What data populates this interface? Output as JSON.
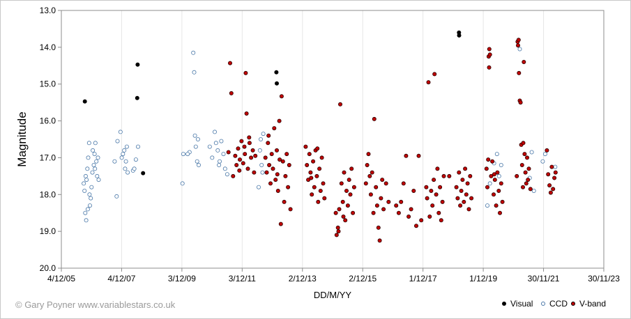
{
  "credit": "© Gary Poyner www.variablestars.co.uk",
  "chart_data": {
    "type": "scatter",
    "xlabel": "DD/M/YY",
    "ylabel": "Magnitude",
    "x_range": [
      "2005-12-04",
      "2023-11-30"
    ],
    "x_ticks": [
      "4/12/05",
      "4/12/07",
      "3/12/09",
      "3/12/11",
      "2/12/13",
      "2/12/15",
      "1/12/17",
      "1/12/19",
      "30/11/21",
      "30/11/23"
    ],
    "ylim": [
      13.0,
      20.0
    ],
    "y_inverted": true,
    "y_ticks": [
      "13.0",
      "14.0",
      "15.0",
      "16.0",
      "17.0",
      "18.0",
      "19.0",
      "20.0"
    ],
    "grid": "vertical",
    "legend_position": "bottom-right",
    "series": [
      {
        "name": "Visual",
        "color": "#000000",
        "points": [
          [
            "2006-09-15",
            15.47
          ],
          [
            "2008-06-15",
            14.47
          ],
          [
            "2008-06-10",
            15.38
          ],
          [
            "2008-08-20",
            17.42
          ],
          [
            "2013-01-20",
            14.68
          ],
          [
            "2013-01-25",
            14.98
          ],
          [
            "2019-02-10",
            13.6
          ],
          [
            "2019-02-12",
            13.68
          ]
        ]
      },
      {
        "name": "CCD",
        "color": "#4a78a8",
        "points": [
          [
            "2006-09-01",
            17.7
          ],
          [
            "2006-09-10",
            17.9
          ],
          [
            "2006-09-20",
            18.5
          ],
          [
            "2006-10-01",
            18.7
          ],
          [
            "2006-10-05",
            17.6
          ],
          [
            "2006-10-15",
            17.3
          ],
          [
            "2006-10-25",
            17.0
          ],
          [
            "2006-11-05",
            16.6
          ],
          [
            "2006-11-15",
            18.3
          ],
          [
            "2006-11-25",
            18.1
          ],
          [
            "2006-12-05",
            17.8
          ],
          [
            "2006-12-15",
            17.4
          ],
          [
            "2007-01-01",
            17.2
          ],
          [
            "2007-01-10",
            16.9
          ],
          [
            "2007-01-20",
            16.6
          ],
          [
            "2007-02-01",
            17.1
          ],
          [
            "2007-02-10",
            17.5
          ],
          [
            "2007-02-20",
            17.0
          ],
          [
            "2007-03-01",
            17.6
          ],
          [
            "2006-09-25",
            17.5
          ],
          [
            "2006-10-20",
            18.4
          ],
          [
            "2006-11-10",
            18.0
          ],
          [
            "2006-12-20",
            16.8
          ],
          [
            "2007-01-15",
            17.3
          ],
          [
            "2007-09-10",
            17.1
          ],
          [
            "2007-10-05",
            18.05
          ],
          [
            "2007-10-15",
            16.55
          ],
          [
            "2007-11-20",
            16.3
          ],
          [
            "2007-12-05",
            17.0
          ],
          [
            "2007-12-20",
            16.9
          ],
          [
            "2008-01-05",
            16.8
          ],
          [
            "2008-01-15",
            17.3
          ],
          [
            "2008-01-25",
            17.1
          ],
          [
            "2008-02-05",
            16.7
          ],
          [
            "2008-02-15",
            17.4
          ],
          [
            "2008-04-20",
            17.35
          ],
          [
            "2008-05-05",
            17.3
          ],
          [
            "2008-05-25",
            17.05
          ],
          [
            "2008-06-20",
            16.7
          ],
          [
            "2009-12-10",
            17.7
          ],
          [
            "2009-12-20",
            16.9
          ],
          [
            "2010-03-05",
            16.85
          ],
          [
            "2010-04-20",
            14.15
          ],
          [
            "2010-05-01",
            14.68
          ],
          [
            "2010-05-10",
            16.4
          ],
          [
            "2010-05-20",
            16.7
          ],
          [
            "2010-06-05",
            17.1
          ],
          [
            "2010-06-15",
            16.5
          ],
          [
            "2010-06-25",
            17.2
          ],
          [
            "2010-02-10",
            16.9
          ],
          [
            "2010-11-05",
            16.7
          ],
          [
            "2010-12-05",
            17.0
          ],
          [
            "2011-01-05",
            16.3
          ],
          [
            "2011-01-20",
            16.6
          ],
          [
            "2011-02-10",
            16.8
          ],
          [
            "2011-03-05",
            17.1
          ],
          [
            "2011-03-25",
            16.55
          ],
          [
            "2011-04-20",
            16.9
          ],
          [
            "2011-05-10",
            17.3
          ],
          [
            "2011-06-05",
            17.45
          ],
          [
            "2011-02-25",
            17.2
          ],
          [
            "2012-07-05",
            16.8
          ],
          [
            "2012-07-15",
            16.5
          ],
          [
            "2012-07-25",
            17.2
          ],
          [
            "2012-08-05",
            17.4
          ],
          [
            "2012-08-15",
            16.35
          ],
          [
            "2012-06-20",
            17.8
          ],
          [
            "2020-01-20",
            18.3
          ],
          [
            "2020-02-20",
            17.7
          ],
          [
            "2020-04-10",
            17.15
          ],
          [
            "2020-05-15",
            16.9
          ],
          [
            "2020-06-10",
            17.5
          ],
          [
            "2020-07-05",
            17.2
          ],
          [
            "2021-02-15",
            14.05
          ],
          [
            "2021-06-15",
            17.55
          ],
          [
            "2021-07-10",
            16.85
          ],
          [
            "2021-08-05",
            17.9
          ],
          [
            "2021-11-20",
            17.1
          ],
          [
            "2021-12-20",
            16.9
          ],
          [
            "2022-04-20",
            17.25
          ]
        ]
      },
      {
        "name": "V-band",
        "color": "#c00000",
        "points": [
          [
            "2011-06-20",
            16.85
          ],
          [
            "2011-07-10",
            14.43
          ],
          [
            "2011-07-25",
            15.25
          ],
          [
            "2011-09-10",
            16.95
          ],
          [
            "2011-09-25",
            17.2
          ],
          [
            "2011-10-15",
            16.75
          ],
          [
            "2011-11-05",
            17.05
          ],
          [
            "2011-11-25",
            16.55
          ],
          [
            "2011-12-15",
            17.15
          ],
          [
            "2012-01-05",
            16.9
          ],
          [
            "2012-01-15",
            14.7
          ],
          [
            "2012-01-25",
            15.8
          ],
          [
            "2012-02-10",
            17.3
          ],
          [
            "2012-03-01",
            16.6
          ],
          [
            "2012-03-20",
            17.0
          ],
          [
            "2012-04-10",
            16.8
          ],
          [
            "2012-04-25",
            17.4
          ],
          [
            "2012-05-10",
            16.95
          ],
          [
            "2011-08-15",
            17.5
          ],
          [
            "2011-10-30",
            17.35
          ],
          [
            "2012-02-25",
            16.45
          ],
          [
            "2011-12-30",
            16.7
          ],
          [
            "2012-09-10",
            17.0
          ],
          [
            "2012-09-25",
            17.4
          ],
          [
            "2012-10-10",
            16.6
          ],
          [
            "2012-10-25",
            17.2
          ],
          [
            "2012-11-10",
            17.7
          ],
          [
            "2012-11-25",
            16.9
          ],
          [
            "2012-12-10",
            17.3
          ],
          [
            "2012-12-25",
            16.2
          ],
          [
            "2013-01-10",
            17.6
          ],
          [
            "2013-01-25",
            16.8
          ],
          [
            "2013-02-10",
            17.9
          ],
          [
            "2013-02-25",
            16.0
          ],
          [
            "2013-03-15",
            18.8
          ],
          [
            "2013-03-25",
            15.33
          ],
          [
            "2013-04-10",
            17.1
          ],
          [
            "2013-04-25",
            18.2
          ],
          [
            "2013-05-10",
            17.5
          ],
          [
            "2013-05-25",
            16.9
          ],
          [
            "2013-06-10",
            17.8
          ],
          [
            "2013-06-25",
            17.2
          ],
          [
            "2013-07-10",
            18.4
          ],
          [
            "2013-02-01",
            17.45
          ],
          [
            "2013-03-01",
            17.05
          ],
          [
            "2012-10-18",
            16.4
          ],
          [
            "2014-01-10",
            16.7
          ],
          [
            "2014-01-25",
            17.2
          ],
          [
            "2014-02-10",
            17.6
          ],
          [
            "2014-02-25",
            16.9
          ],
          [
            "2014-03-10",
            17.4
          ],
          [
            "2014-03-25",
            18.0
          ],
          [
            "2014-04-10",
            17.1
          ],
          [
            "2014-04-25",
            17.8
          ],
          [
            "2014-05-10",
            16.8
          ],
          [
            "2014-05-25",
            17.5
          ],
          [
            "2014-06-10",
            18.2
          ],
          [
            "2014-06-25",
            17.3
          ],
          [
            "2014-07-10",
            17.9
          ],
          [
            "2014-07-25",
            17.0
          ],
          [
            "2014-08-10",
            17.7
          ],
          [
            "2014-08-25",
            18.1
          ],
          [
            "2014-03-18",
            17.55
          ],
          [
            "2014-06-01",
            16.75
          ],
          [
            "2015-01-10",
            18.5
          ],
          [
            "2015-01-20",
            19.1
          ],
          [
            "2015-02-05",
            18.9
          ],
          [
            "2015-02-20",
            18.4
          ],
          [
            "2015-03-05",
            15.55
          ],
          [
            "2015-03-20",
            17.7
          ],
          [
            "2015-04-05",
            18.2
          ],
          [
            "2015-04-20",
            17.4
          ],
          [
            "2015-05-05",
            18.7
          ],
          [
            "2015-05-20",
            17.9
          ],
          [
            "2015-06-05",
            18.3
          ],
          [
            "2015-06-20",
            17.6
          ],
          [
            "2015-07-05",
            18.0
          ],
          [
            "2015-07-20",
            17.3
          ],
          [
            "2015-08-05",
            18.5
          ],
          [
            "2015-08-20",
            17.8
          ],
          [
            "2015-02-12",
            19.0
          ],
          [
            "2015-04-12",
            18.6
          ],
          [
            "2016-01-10",
            17.7
          ],
          [
            "2016-01-25",
            17.2
          ],
          [
            "2016-02-10",
            16.9
          ],
          [
            "2016-02-25",
            17.5
          ],
          [
            "2016-03-10",
            18.0
          ],
          [
            "2016-03-25",
            17.4
          ],
          [
            "2016-04-10",
            18.5
          ],
          [
            "2016-04-20",
            15.95
          ],
          [
            "2016-05-10",
            17.8
          ],
          [
            "2016-05-25",
            18.3
          ],
          [
            "2016-06-10",
            18.9
          ],
          [
            "2016-06-25",
            19.25
          ],
          [
            "2016-07-10",
            18.1
          ],
          [
            "2016-07-25",
            17.6
          ],
          [
            "2016-08-10",
            18.4
          ],
          [
            "2016-09-10",
            17.7
          ],
          [
            "2016-10-10",
            18.2
          ],
          [
            "2017-01-10",
            18.3
          ],
          [
            "2017-02-10",
            18.5
          ],
          [
            "2017-03-10",
            18.2
          ],
          [
            "2017-04-10",
            17.7
          ],
          [
            "2017-05-10",
            16.95
          ],
          [
            "2017-06-10",
            18.6
          ],
          [
            "2017-07-10",
            18.4
          ],
          [
            "2017-08-10",
            17.9
          ],
          [
            "2017-09-10",
            18.85
          ],
          [
            "2017-10-10",
            16.95
          ],
          [
            "2017-11-10",
            18.7
          ],
          [
            "2018-01-10",
            17.8
          ],
          [
            "2018-01-20",
            18.1
          ],
          [
            "2018-02-05",
            14.95
          ],
          [
            "2018-02-20",
            18.6
          ],
          [
            "2018-03-10",
            17.9
          ],
          [
            "2018-03-25",
            18.3
          ],
          [
            "2018-04-10",
            17.6
          ],
          [
            "2018-04-20",
            14.73
          ],
          [
            "2018-05-10",
            18.0
          ],
          [
            "2018-05-25",
            17.3
          ],
          [
            "2018-06-10",
            18.5
          ],
          [
            "2018-06-25",
            17.8
          ],
          [
            "2018-07-10",
            18.7
          ],
          [
            "2018-07-25",
            18.2
          ],
          [
            "2018-08-10",
            17.5
          ],
          [
            "2018-10-15",
            17.5
          ],
          [
            "2019-01-10",
            17.8
          ],
          [
            "2019-01-25",
            18.1
          ],
          [
            "2019-02-10",
            17.4
          ],
          [
            "2019-02-25",
            18.3
          ],
          [
            "2019-03-10",
            17.9
          ],
          [
            "2019-03-25",
            17.6
          ],
          [
            "2019-04-10",
            18.2
          ],
          [
            "2019-04-25",
            17.3
          ],
          [
            "2019-05-10",
            18.0
          ],
          [
            "2019-05-25",
            17.7
          ],
          [
            "2019-06-10",
            18.4
          ],
          [
            "2019-06-25",
            17.5
          ],
          [
            "2019-07-10",
            18.1
          ],
          [
            "2020-01-10",
            17.3
          ],
          [
            "2020-01-20",
            17.8
          ],
          [
            "2020-02-05",
            14.25
          ],
          [
            "2020-02-10",
            14.55
          ],
          [
            "2020-02-12",
            14.05
          ],
          [
            "2020-02-20",
            14.2
          ],
          [
            "2020-03-05",
            17.5
          ],
          [
            "2020-03-20",
            17.1
          ],
          [
            "2020-04-05",
            18.0
          ],
          [
            "2020-04-20",
            17.6
          ],
          [
            "2020-05-05",
            18.3
          ],
          [
            "2020-05-20",
            17.4
          ],
          [
            "2020-06-05",
            17.9
          ],
          [
            "2020-06-20",
            18.5
          ],
          [
            "2020-07-05",
            17.7
          ],
          [
            "2020-07-20",
            18.2
          ],
          [
            "2020-01-30",
            17.05
          ],
          [
            "2020-04-12",
            17.45
          ],
          [
            "2021-01-10",
            17.5
          ],
          [
            "2021-01-20",
            13.85
          ],
          [
            "2021-01-25",
            13.95
          ],
          [
            "2021-02-05",
            14.7
          ],
          [
            "2021-02-15",
            15.45
          ],
          [
            "2021-02-25",
            15.5
          ],
          [
            "2021-03-05",
            16.65
          ],
          [
            "2021-03-15",
            17.2
          ],
          [
            "2021-03-25",
            17.8
          ],
          [
            "2021-04-05",
            14.4
          ],
          [
            "2021-04-15",
            16.9
          ],
          [
            "2021-04-25",
            17.4
          ],
          [
            "2021-05-05",
            17.7
          ],
          [
            "2021-05-15",
            17.0
          ],
          [
            "2021-05-25",
            17.6
          ],
          [
            "2021-06-05",
            17.3
          ],
          [
            "2021-06-25",
            17.85
          ],
          [
            "2021-03-30",
            16.6
          ],
          [
            "2021-02-01",
            13.8
          ],
          [
            "2022-01-10",
            16.8
          ],
          [
            "2022-01-25",
            17.45
          ],
          [
            "2022-02-10",
            17.75
          ],
          [
            "2022-02-25",
            17.95
          ],
          [
            "2022-03-10",
            17.25
          ],
          [
            "2022-03-25",
            17.85
          ],
          [
            "2022-04-10",
            17.55
          ],
          [
            "2022-04-25",
            17.4
          ]
        ]
      }
    ]
  }
}
